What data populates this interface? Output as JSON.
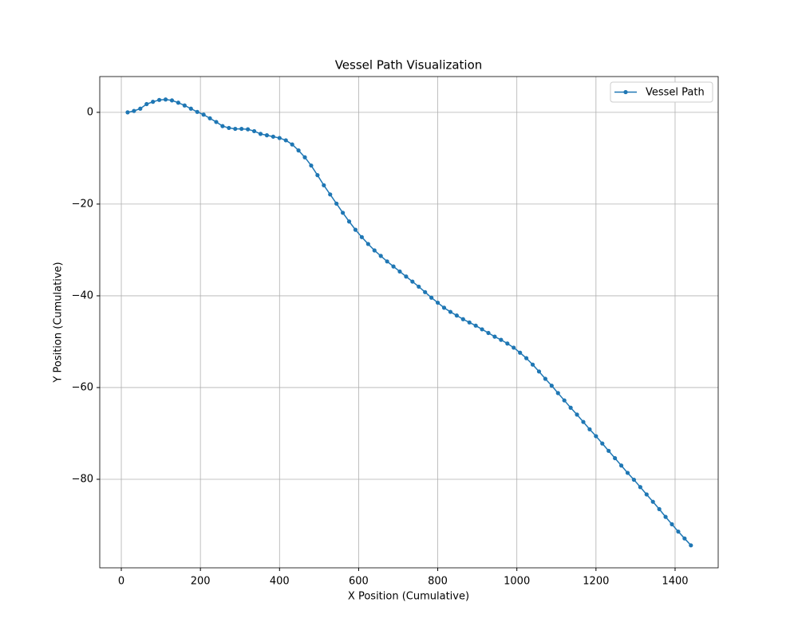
{
  "chart_data": {
    "type": "line",
    "title": "Vessel Path Visualization",
    "x_label": "X Position (Cumulative)",
    "y_label": "Y Position (Cumulative)",
    "x": [
      16,
      32,
      48,
      64,
      80,
      96,
      112,
      128,
      144,
      160,
      176,
      192,
      208,
      224,
      240,
      256,
      272,
      288,
      304,
      320,
      336,
      352,
      368,
      384,
      400,
      416,
      432,
      448,
      464,
      480,
      496,
      512,
      528,
      544,
      560,
      576,
      592,
      608,
      624,
      640,
      656,
      672,
      688,
      704,
      720,
      736,
      752,
      768,
      784,
      800,
      816,
      832,
      848,
      864,
      880,
      896,
      912,
      928,
      944,
      960,
      976,
      992,
      1008,
      1024,
      1040,
      1056,
      1072,
      1088,
      1104,
      1120,
      1136,
      1152,
      1168,
      1184,
      1200,
      1216,
      1232,
      1248,
      1264,
      1280,
      1296,
      1312,
      1328,
      1344,
      1360,
      1376,
      1392,
      1408,
      1424,
      1440
    ],
    "series": [
      {
        "name": "Vessel Path",
        "color": "#1f77b4",
        "values": [
          0,
          0.3,
          0.8,
          1.8,
          2.3,
          2.7,
          2.8,
          2.6,
          2.1,
          1.5,
          0.8,
          0.1,
          -0.5,
          -1.3,
          -2.1,
          -3.0,
          -3.4,
          -3.6,
          -3.6,
          -3.7,
          -4.1,
          -4.7,
          -5.0,
          -5.3,
          -5.6,
          -6.1,
          -7.0,
          -8.3,
          -9.8,
          -11.6,
          -13.7,
          -15.9,
          -17.9,
          -19.9,
          -21.9,
          -23.8,
          -25.6,
          -27.2,
          -28.7,
          -30.1,
          -31.3,
          -32.5,
          -33.6,
          -34.7,
          -35.8,
          -36.9,
          -38.0,
          -39.2,
          -40.4,
          -41.5,
          -42.6,
          -43.5,
          -44.3,
          -45.1,
          -45.8,
          -46.5,
          -47.3,
          -48.1,
          -48.9,
          -49.6,
          -50.4,
          -51.3,
          -52.4,
          -53.6,
          -55.0,
          -56.5,
          -58.1,
          -59.6,
          -61.2,
          -62.8,
          -64.4,
          -65.9,
          -67.5,
          -69.1,
          -70.6,
          -72.2,
          -73.8,
          -75.4,
          -77.0,
          -78.6,
          -80.1,
          -81.7,
          -83.3,
          -84.9,
          -86.5,
          -88.2,
          -89.8,
          -91.4,
          -92.9,
          -94.4
        ]
      }
    ],
    "xlim": [
      -54.5,
      1509
    ],
    "ylim": [
      -99.3,
      7.8
    ],
    "xticks": [
      0,
      200,
      400,
      600,
      800,
      1000,
      1200,
      1400
    ],
    "yticks": [
      0,
      {
        "value": -20,
        "label": "−20"
      },
      {
        "value": -40,
        "label": "−40"
      },
      {
        "value": -60,
        "label": "−60"
      },
      {
        "value": -80,
        "label": "−80"
      }
    ],
    "grid": true,
    "legend": "upper right",
    "marker": "circle"
  }
}
